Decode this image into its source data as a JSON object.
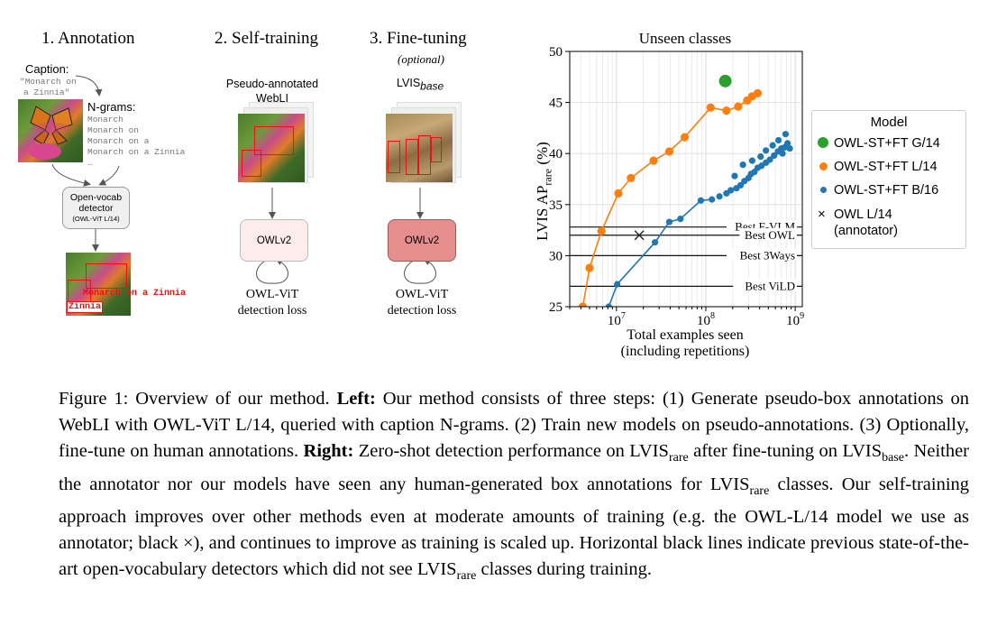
{
  "figure": {
    "steps": {
      "s1_title": "1. Annotation",
      "s2_title": "2. Self-training",
      "s3_title": "3. Fine-tuning",
      "s3_subtitle": "(optional)"
    },
    "annotation": {
      "caption_label": "Caption:",
      "caption_text_1": "\"Monarch on",
      "caption_text_2": "a Zinnia\"",
      "ngrams_label": "N-grams:",
      "ngrams": [
        "Monarch",
        "Monarch on",
        "Monarch on a",
        "Monarch on a Zinnia",
        "…"
      ],
      "detector_line1": "Open-vocab",
      "detector_line2": "detector",
      "detector_line3": "(OWL-ViT L/14)",
      "box_label_1": "Monarch on a Zinnia",
      "box_label_2": "Zinnia"
    },
    "selftrain": {
      "dataset_line1": "Pseudo-annotated",
      "dataset_line2": "WebLI",
      "model_label": "OWLv2",
      "loss_line1": "OWL-ViT",
      "loss_line2": "detection loss"
    },
    "finetune": {
      "dataset_main": "LVIS",
      "dataset_sub": "base",
      "model_label": "OWLv2",
      "loss_line1": "OWL-ViT",
      "loss_line2": "detection loss"
    }
  },
  "chart_data": {
    "type": "line",
    "title": "Unseen classes",
    "xlabel_line1": "Total examples seen",
    "xlabel_line2": "(including repetitions)",
    "ylabel_main": "LVIS AP",
    "ylabel_sub": "rare",
    "ylabel_unit": "(%)",
    "xscale": "log",
    "xlim": [
      3000000,
      1200000000
    ],
    "ylim": [
      25,
      50
    ],
    "yticks": [
      25,
      30,
      35,
      40,
      45,
      50
    ],
    "xticks": [
      {
        "value": 10000000,
        "base": "10",
        "exp": "7"
      },
      {
        "value": 100000000,
        "base": "10",
        "exp": "8"
      },
      {
        "value": 1000000000,
        "base": "10",
        "exp": "9"
      }
    ],
    "grid": true,
    "legend_title": "Model",
    "legend_placement": "right",
    "series": [
      {
        "name": "OWL-ST+FT G/14",
        "color": "#2ca02c",
        "marker": "big-dot",
        "points": [
          [
            165000000,
            47.1
          ]
        ]
      },
      {
        "name": "OWL-ST+FT L/14",
        "color": "#ff7f0e",
        "marker": "dot",
        "points": [
          [
            4200000,
            25.0
          ],
          [
            5000000,
            28.8
          ],
          [
            6800000,
            32.4
          ],
          [
            10500000,
            36.1
          ],
          [
            14500000,
            37.6
          ],
          [
            26000000,
            39.3
          ],
          [
            39000000,
            40.2
          ],
          [
            58000000,
            41.6
          ],
          [
            113000000,
            44.5
          ],
          [
            170000000,
            44.2
          ],
          [
            230000000,
            44.6
          ],
          [
            290000000,
            45.2
          ],
          [
            330000000,
            45.6
          ],
          [
            380000000,
            45.9
          ]
        ]
      },
      {
        "name": "OWL-ST+FT B/16",
        "color": "#1f77b4",
        "marker": "dot",
        "points": [
          [
            8200000,
            25.0
          ],
          [
            10200000,
            27.2
          ],
          [
            27000000,
            31.3
          ],
          [
            39000000,
            33.3
          ],
          [
            52000000,
            33.6
          ],
          [
            88000000,
            35.4
          ],
          [
            117000000,
            35.5
          ],
          [
            142000000,
            35.8
          ],
          [
            170000000,
            36.1
          ],
          [
            190000000,
            36.4
          ],
          [
            220000000,
            36.6
          ],
          [
            245000000,
            36.9
          ],
          [
            270000000,
            37.3
          ],
          [
            300000000,
            37.6
          ],
          [
            320000000,
            38.0
          ],
          [
            350000000,
            38.2
          ],
          [
            380000000,
            38.6
          ],
          [
            420000000,
            38.8
          ],
          [
            470000000,
            39.1
          ],
          [
            520000000,
            39.4
          ],
          [
            580000000,
            39.8
          ],
          [
            640000000,
            40.2
          ],
          [
            700000000,
            40.5
          ],
          [
            760000000,
            40.6
          ],
          [
            820000000,
            41.0
          ],
          [
            870000000,
            40.5
          ],
          [
            780000000,
            41.9
          ],
          [
            210000000,
            37.8
          ],
          [
            260000000,
            38.9
          ],
          [
            330000000,
            39.3
          ],
          [
            410000000,
            39.7
          ],
          [
            470000000,
            40.3
          ],
          [
            560000000,
            40.8
          ],
          [
            650000000,
            41.3
          ],
          [
            720000000,
            40.0
          ]
        ]
      },
      {
        "name": "OWL L/14",
        "name_line2": "(annotator)",
        "color": "#222222",
        "marker": "x",
        "points": [
          [
            18000000,
            32.0
          ]
        ]
      }
    ],
    "hlines": [
      {
        "label": "Best F-VLM",
        "y": 32.8
      },
      {
        "label": "Best OWL",
        "y": 32.0
      },
      {
        "label": "Best 3Ways",
        "y": 30.0
      },
      {
        "label": "Best ViLD",
        "y": 27.0
      }
    ]
  },
  "caption": {
    "fig_label": "Figure 1: Overview of our method.",
    "left_label": "Left:",
    "left_text": "Our method consists of three steps: (1) Generate pseudo-box annotations on WebLI with OWL-ViT L/14, queried with caption N-grams. (2) Train new models on pseudo-annotations. (3) Optionally, fine-tune on human annotations.",
    "right_label": "Right:",
    "right_text_1": "Zero-shot detection performance on LVIS",
    "sub_rare": "rare",
    "right_text_2": "after fine-tuning on LVIS",
    "sub_base": "base",
    "right_text_3": ". Neither the annotator nor our models have seen any human-generated box annotations for LVIS",
    "right_text_4": "classes. Our self-training approach improves over other methods even at moderate amounts of training (e.g. the OWL-L/14 model we use as annotator; black ×), and continues to improve as training is scaled up. Horizontal black lines indicate previous state-of-the-art open-vocabulary detectors which did not see LVIS",
    "right_text_5": "classes during training."
  }
}
